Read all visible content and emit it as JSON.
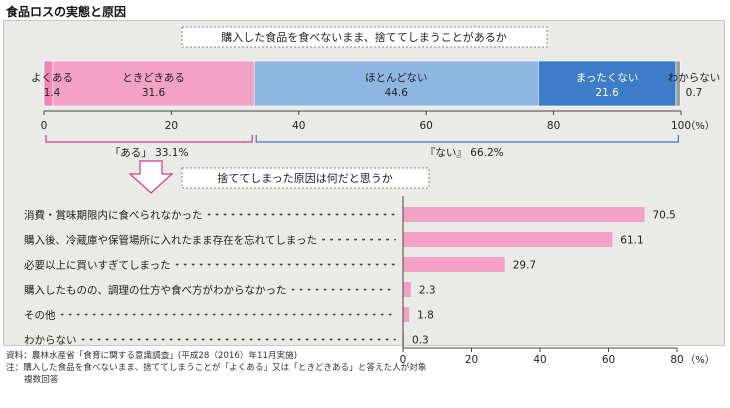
{
  "page": {
    "title": "食品ロスの実態と原因"
  },
  "chart_data": [
    {
      "type": "bar",
      "orientation": "horizontal-stacked",
      "title": "購入した食品を食べないまま、捨ててしまうことがあるか",
      "categories": [
        "よくある",
        "ときどきある",
        "ほとんどない",
        "まったくない",
        "わからない"
      ],
      "values": [
        1.4,
        31.6,
        44.6,
        21.6,
        0.7
      ],
      "colors": [
        "#ef88b4",
        "#f3a2c6",
        "#8db6e3",
        "#3d7cc6",
        "#9aa0a6"
      ],
      "xlim": [
        0,
        100
      ],
      "xticks": [
        0,
        20,
        40,
        60,
        80,
        100
      ],
      "unit": "（%）",
      "groups": [
        {
          "label": "「ある」 33.1%",
          "from": 0,
          "to": 33
        },
        {
          "label": "『ない』 66.2%",
          "from": 33,
          "to": 99.9
        }
      ]
    },
    {
      "type": "bar",
      "orientation": "horizontal",
      "title": "捨ててしまった原因は何だと思うか",
      "categories": [
        "消費・賞味期限内に食べられなかった",
        "購入後、冷蔵庫や保管場所に入れたまま存在を忘れてしまった",
        "必要以上に買いすぎてしまった",
        "購入したものの、調理の仕方や食べ方がわからなかった",
        "その他",
        "わからない"
      ],
      "values": [
        70.5,
        61.1,
        29.7,
        2.3,
        1.8,
        0.3
      ],
      "color": "#f3a2c6",
      "xlim": [
        0,
        80
      ],
      "xticks": [
        0,
        20,
        40,
        60,
        80
      ],
      "unit": "（%）"
    }
  ],
  "notes": {
    "source": "資料：農林水産省「食育に関する意識調査」(平成28（2016）年11月実施)",
    "note": "注：購入した食品を食べないまま、捨ててしまうことが「よくある」又は「ときどきある」と答えた人が対象",
    "note2": "複数回答"
  }
}
